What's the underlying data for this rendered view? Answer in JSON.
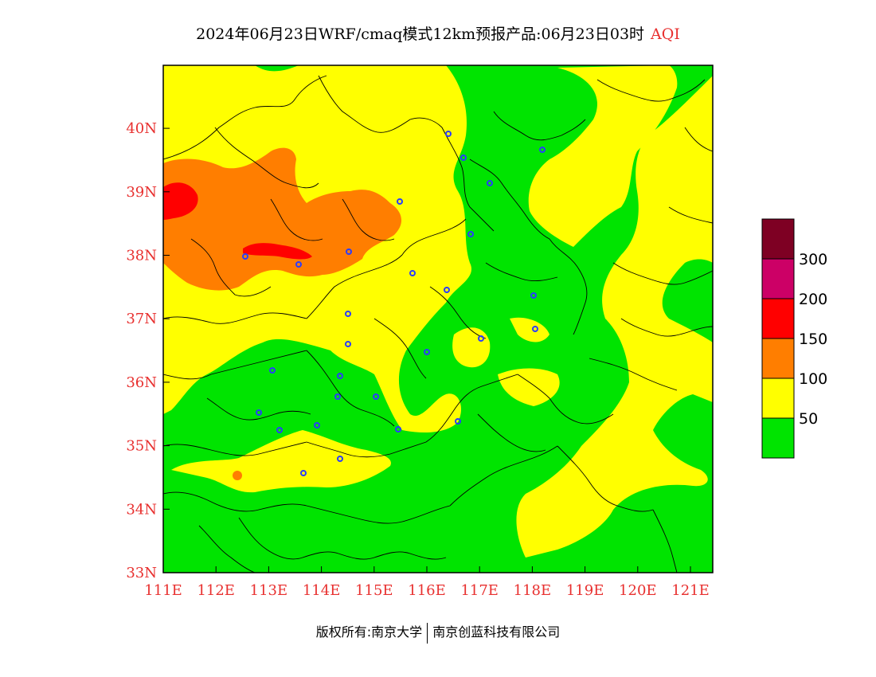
{
  "title": {
    "main": "2024年06月23日WRF/cmaq模式12km预报产品:06月23日03时",
    "variable": "AQI"
  },
  "axes": {
    "x_ticks": [
      "111E",
      "112E",
      "113E",
      "114E",
      "115E",
      "116E",
      "117E",
      "118E",
      "119E",
      "120E",
      "121E"
    ],
    "y_ticks": [
      "33N",
      "34N",
      "35N",
      "36N",
      "37N",
      "38N",
      "39N",
      "40N"
    ]
  },
  "legend": {
    "levels": [
      {
        "label": "",
        "color": "#00e400"
      },
      {
        "label": "50",
        "color": "#ffff00"
      },
      {
        "label": "100",
        "color": "#ff7e00"
      },
      {
        "label": "150",
        "color": "#ff0000"
      },
      {
        "label": "200",
        "color": "#cc0066"
      },
      {
        "label": "300",
        "color": "#7e0023"
      }
    ]
  },
  "colors": {
    "good": "#00e400",
    "moderate": "#ffff00",
    "usg": "#ff7e00",
    "unhealthy": "#ff0000",
    "very_unhealthy": "#cc0066",
    "hazardous": "#7e0023",
    "station_marker": "#2a3cff",
    "axis_text": "#e8302f"
  },
  "footer": {
    "copyright": "版权所有:南京大学",
    "company": "南京创蓝科技有限公司"
  }
}
